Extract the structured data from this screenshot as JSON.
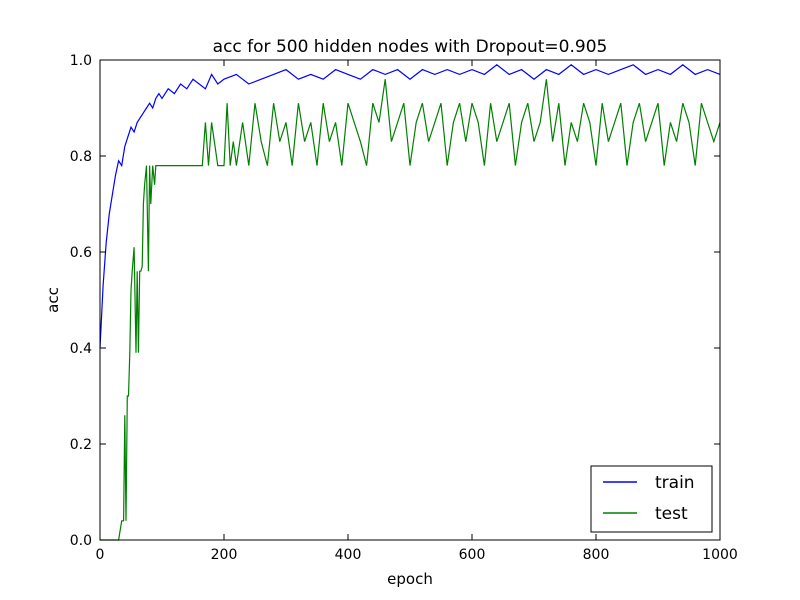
{
  "chart_data": {
    "type": "line",
    "title": "acc for 500 hidden nodes with Dropout=0.905",
    "xlabel": "epoch",
    "ylabel": "acc",
    "xlim": [
      0,
      1000
    ],
    "ylim": [
      0.0,
      1.0
    ],
    "xticks": [
      "0",
      "200",
      "400",
      "600",
      "800",
      "1000"
    ],
    "yticks": [
      "0.0",
      "0.2",
      "0.4",
      "0.6",
      "0.8",
      "1.0"
    ],
    "grid": false,
    "legend_position": "lower-right",
    "series": [
      {
        "name": "train",
        "color": "#0000ff",
        "x": [
          0,
          5,
          10,
          15,
          20,
          25,
          30,
          35,
          40,
          45,
          50,
          55,
          60,
          65,
          70,
          75,
          80,
          85,
          90,
          95,
          100,
          110,
          120,
          130,
          140,
          150,
          160,
          170,
          180,
          190,
          200,
          220,
          240,
          260,
          280,
          300,
          320,
          340,
          360,
          380,
          400,
          420,
          440,
          460,
          480,
          500,
          520,
          540,
          560,
          580,
          600,
          620,
          640,
          660,
          680,
          700,
          720,
          740,
          760,
          780,
          800,
          820,
          840,
          860,
          880,
          900,
          920,
          940,
          960,
          980,
          1000
        ],
        "values": [
          0.4,
          0.53,
          0.62,
          0.68,
          0.72,
          0.76,
          0.79,
          0.78,
          0.82,
          0.84,
          0.86,
          0.85,
          0.87,
          0.88,
          0.89,
          0.9,
          0.91,
          0.9,
          0.92,
          0.93,
          0.92,
          0.94,
          0.93,
          0.95,
          0.94,
          0.96,
          0.95,
          0.94,
          0.97,
          0.95,
          0.96,
          0.97,
          0.95,
          0.96,
          0.97,
          0.98,
          0.96,
          0.97,
          0.96,
          0.98,
          0.97,
          0.96,
          0.98,
          0.97,
          0.98,
          0.96,
          0.98,
          0.97,
          0.98,
          0.97,
          0.98,
          0.97,
          0.99,
          0.97,
          0.98,
          0.96,
          0.98,
          0.97,
          0.99,
          0.97,
          0.98,
          0.97,
          0.98,
          0.99,
          0.97,
          0.98,
          0.97,
          0.99,
          0.97,
          0.98,
          0.97
        ]
      },
      {
        "name": "test",
        "color": "#008000",
        "x": [
          0,
          20,
          30,
          35,
          38,
          40,
          42,
          44,
          46,
          48,
          50,
          52,
          55,
          58,
          60,
          62,
          64,
          66,
          68,
          70,
          72,
          75,
          78,
          80,
          82,
          85,
          88,
          90,
          95,
          100,
          150,
          165,
          170,
          175,
          180,
          190,
          200,
          205,
          210,
          215,
          220,
          230,
          240,
          250,
          260,
          270,
          280,
          290,
          300,
          310,
          320,
          330,
          340,
          350,
          360,
          370,
          380,
          390,
          400,
          410,
          420,
          430,
          440,
          450,
          460,
          470,
          480,
          490,
          500,
          510,
          520,
          530,
          540,
          550,
          560,
          570,
          580,
          590,
          600,
          610,
          620,
          630,
          640,
          650,
          660,
          670,
          680,
          690,
          700,
          710,
          720,
          730,
          740,
          750,
          760,
          770,
          780,
          790,
          800,
          810,
          820,
          830,
          840,
          850,
          860,
          870,
          880,
          890,
          900,
          910,
          920,
          930,
          940,
          950,
          960,
          970,
          980,
          990,
          1000
        ],
        "values": [
          0.0,
          0.0,
          0.0,
          0.04,
          0.04,
          0.26,
          0.04,
          0.3,
          0.3,
          0.39,
          0.52,
          0.56,
          0.61,
          0.39,
          0.56,
          0.39,
          0.56,
          0.56,
          0.57,
          0.7,
          0.74,
          0.78,
          0.56,
          0.78,
          0.7,
          0.78,
          0.74,
          0.78,
          0.78,
          0.78,
          0.78,
          0.78,
          0.87,
          0.78,
          0.87,
          0.78,
          0.78,
          0.91,
          0.78,
          0.83,
          0.78,
          0.87,
          0.78,
          0.91,
          0.83,
          0.78,
          0.91,
          0.83,
          0.87,
          0.78,
          0.91,
          0.83,
          0.87,
          0.78,
          0.91,
          0.83,
          0.87,
          0.78,
          0.91,
          0.87,
          0.83,
          0.78,
          0.91,
          0.87,
          0.96,
          0.83,
          0.87,
          0.91,
          0.78,
          0.87,
          0.91,
          0.83,
          0.87,
          0.91,
          0.78,
          0.87,
          0.91,
          0.83,
          0.91,
          0.87,
          0.78,
          0.91,
          0.83,
          0.87,
          0.91,
          0.78,
          0.87,
          0.91,
          0.83,
          0.87,
          0.96,
          0.83,
          0.91,
          0.78,
          0.87,
          0.83,
          0.91,
          0.87,
          0.78,
          0.91,
          0.83,
          0.87,
          0.91,
          0.78,
          0.87,
          0.91,
          0.83,
          0.87,
          0.91,
          0.78,
          0.87,
          0.83,
          0.91,
          0.87,
          0.78,
          0.91,
          0.87,
          0.83,
          0.87
        ]
      }
    ]
  }
}
